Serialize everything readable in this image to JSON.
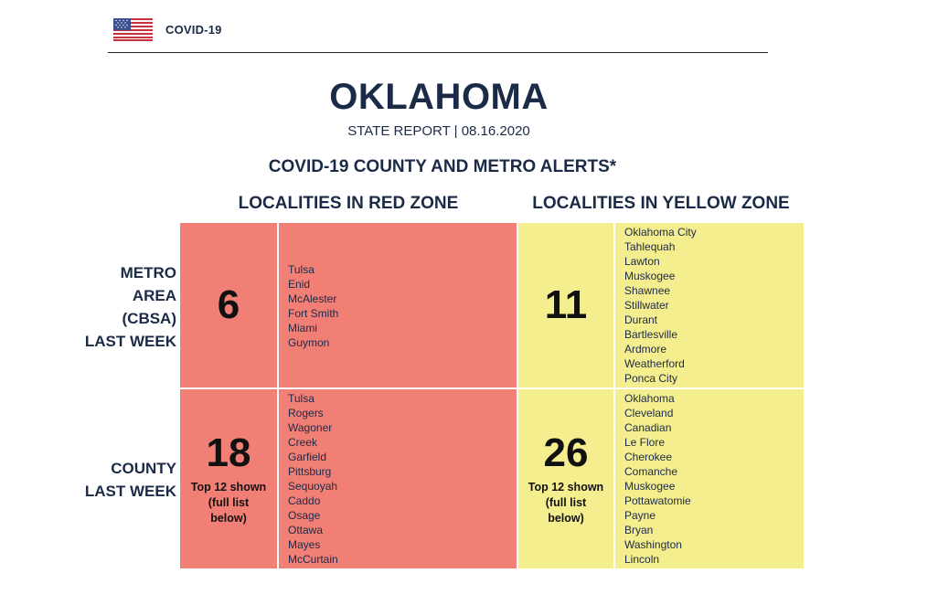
{
  "header": {
    "label": "COVID-19",
    "flag_icon": "us-flag-icon"
  },
  "report": {
    "title": "OKLAHOMA",
    "subtitle": "STATE REPORT | 08.16.2020",
    "alerts_title": "COVID-19 COUNTY AND METRO ALERTS*"
  },
  "zones": {
    "red_heading": "LOCALITIES IN RED ZONE",
    "yellow_heading": "LOCALITIES IN YELLOW ZONE",
    "red_color": "#f27f75",
    "yellow_color": "#f5ee8e"
  },
  "metro": {
    "label_lines": [
      "METRO",
      "AREA",
      "(CBSA)",
      "LAST WEEK"
    ],
    "red_count": "6",
    "red_list": [
      "Tulsa",
      "Enid",
      "McAlester",
      "Fort Smith",
      "Miami",
      "Guymon"
    ],
    "yellow_count": "11",
    "yellow_list": [
      "Oklahoma City",
      "Tahlequah",
      "Lawton",
      "Muskogee",
      "Shawnee",
      "Stillwater",
      "Durant",
      "Bartlesville",
      "Ardmore",
      "Weatherford",
      "Ponca City"
    ]
  },
  "county": {
    "label_lines": [
      "COUNTY",
      "LAST WEEK"
    ],
    "red_count": "18",
    "red_note_lines": [
      "Top 12 shown",
      "(full list",
      "below)"
    ],
    "red_list": [
      "Tulsa",
      "Rogers",
      "Wagoner",
      "Creek",
      "Garfield",
      "Pittsburg",
      "Sequoyah",
      "Caddo",
      "Osage",
      "Ottawa",
      "Mayes",
      "McCurtain"
    ],
    "yellow_count": "26",
    "yellow_note_lines": [
      "Top 12 shown",
      "(full list",
      "below)"
    ],
    "yellow_list": [
      "Oklahoma",
      "Cleveland",
      "Canadian",
      "Le Flore",
      "Cherokee",
      "Comanche",
      "Muskogee",
      "Pottawatomie",
      "Payne",
      "Bryan",
      "Washington",
      "Lincoln"
    ]
  }
}
